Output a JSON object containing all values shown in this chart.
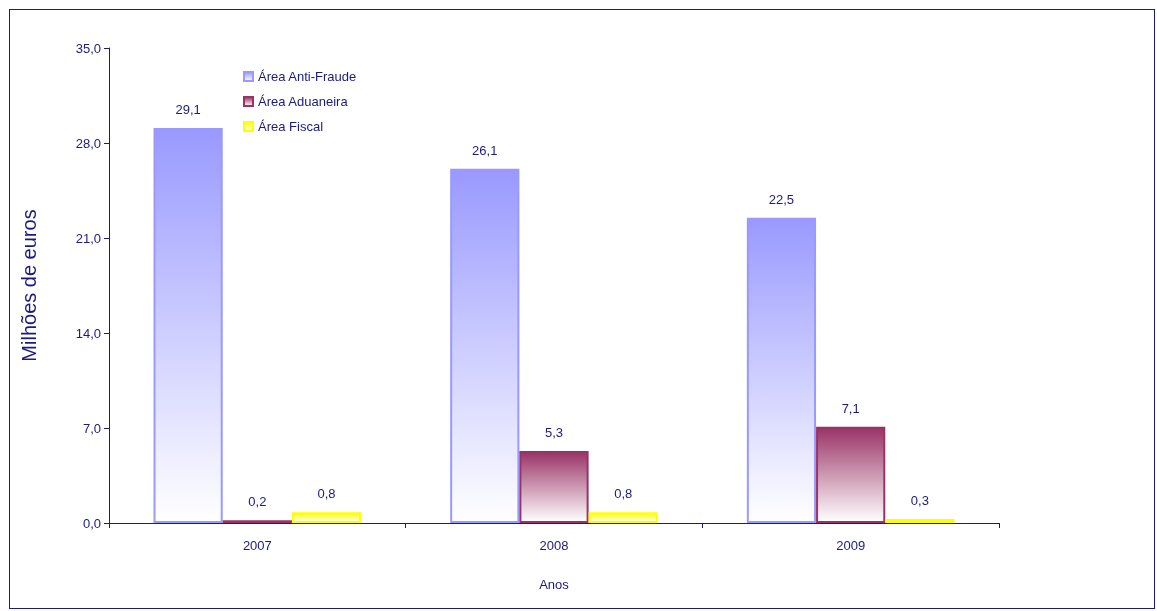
{
  "chart_data": {
    "type": "bar",
    "xlabel": "Anos",
    "ylabel": "Milhões de euros",
    "categories": [
      "2007",
      "2008",
      "2009"
    ],
    "series": [
      {
        "name": "Área Anti-Fraude",
        "color": "#9999ff",
        "values": [
          29.1,
          26.1,
          22.5
        ],
        "value_labels": [
          "29,1",
          "26,1",
          "22,5"
        ]
      },
      {
        "name": "Área Aduaneira",
        "color": "#993366",
        "values": [
          0.2,
          5.3,
          7.1
        ],
        "value_labels": [
          "0,2",
          "5,3",
          "7,1"
        ]
      },
      {
        "name": "Área Fiscal",
        "color": "#ffff00",
        "values": [
          0.8,
          0.8,
          0.3
        ],
        "value_labels": [
          "0,8",
          "0,8",
          "0,3"
        ]
      }
    ],
    "ylim": [
      0,
      35
    ],
    "yticks": [
      {
        "value": 0,
        "label": "0,0"
      },
      {
        "value": 7,
        "label": "7,0"
      },
      {
        "value": 14,
        "label": "14,0"
      },
      {
        "value": 21,
        "label": "21,0"
      },
      {
        "value": 28,
        "label": "28,0"
      },
      {
        "value": 35,
        "label": "35,0"
      }
    ],
    "grid": false,
    "legend": "top left"
  }
}
